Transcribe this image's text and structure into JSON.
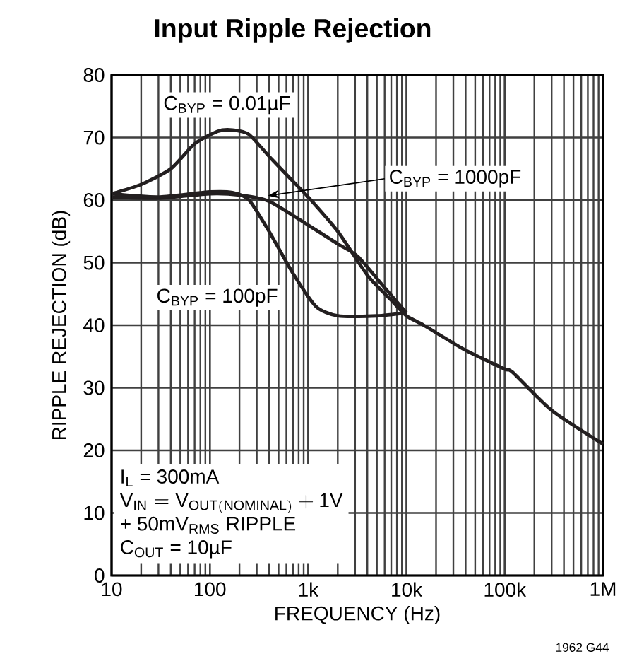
{
  "chart_data": {
    "type": "line",
    "title": "Input Ripple Rejection",
    "xlabel": "FREQUENCY (Hz)",
    "ylabel": "RIPPLE REJECTION (dB)",
    "log": "x",
    "grid": true,
    "xlim": [
      10,
      1000000
    ],
    "ylim": [
      0,
      80
    ],
    "xticks": [
      {
        "value": 10,
        "label": "10"
      },
      {
        "value": 100,
        "label": "100"
      },
      {
        "value": 1000,
        "label": "1k"
      },
      {
        "value": 10000,
        "label": "10k"
      },
      {
        "value": 100000,
        "label": "100k"
      },
      {
        "value": 1000000,
        "label": "1M"
      }
    ],
    "yticks": [
      0,
      10,
      20,
      30,
      40,
      50,
      60,
      70,
      80
    ],
    "series": [
      {
        "color": "#231f20",
        "x": [
          10,
          20,
          40,
          70,
          120,
          170,
          250,
          400,
          700,
          1000,
          2000,
          4000,
          7000,
          10000,
          15000,
          40000,
          100000,
          120000,
          300000,
          1000000
        ],
        "values": [
          61,
          62.5,
          65,
          69,
          71,
          71.2,
          70.5,
          67,
          63,
          60.5,
          55,
          48,
          44,
          41.5,
          40,
          36,
          33,
          32.5,
          26.4,
          21
        ]
      },
      {
        "color": "#231f20",
        "x": [
          10,
          30,
          100,
          200,
          400,
          1000,
          2000,
          3200,
          6000,
          10000
        ],
        "values": [
          60.5,
          60.3,
          61,
          60.8,
          59.8,
          56,
          53,
          51,
          46,
          42
        ]
      },
      {
        "color": "#231f20",
        "x": [
          10,
          30,
          100,
          170,
          250,
          400,
          700,
          1200,
          2000,
          5000,
          10000
        ],
        "values": [
          61,
          60.5,
          61.3,
          61.2,
          60,
          55,
          48.3,
          43,
          41.5,
          41.5,
          42
        ]
      }
    ],
    "annotations": [
      "C$_{BYP}$ = 0.01µF",
      {
        "text": "C$_{BYP}$ = 1000pF",
        "x": 390,
        "y": 60.7
      },
      "C$_{BYP}$ = 100pF",
      "I$_{L}$ = 300mA",
      "\\mathrm{V_{IN}=V_{OUT(NOMINAL)}+1V}",
      "+ 50mV$_{RMS}$ RIPPLE",
      "C$_{OUT}$ = 10µF",
      "1962 G44"
    ]
  }
}
